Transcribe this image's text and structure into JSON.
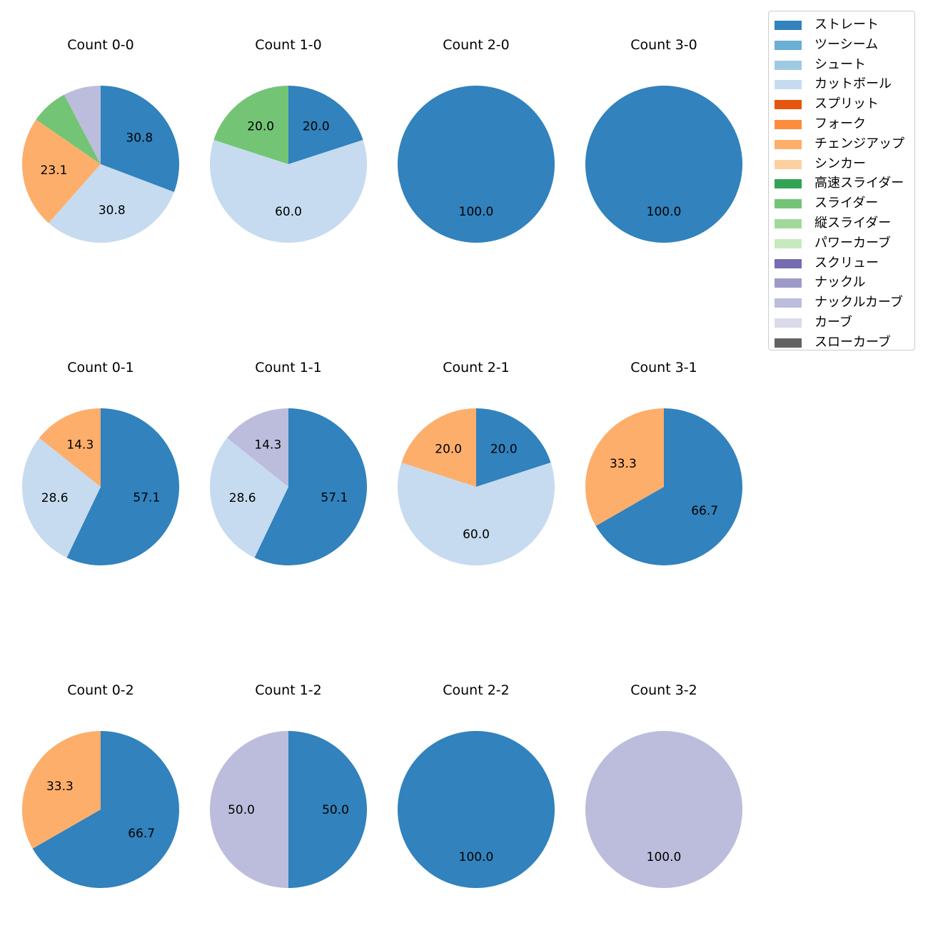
{
  "categories": [
    "ストレート",
    "ツーシーム",
    "シュート",
    "カットボール",
    "スプリット",
    "フォーク",
    "チェンジアップ",
    "シンカー",
    "高速スライダー",
    "スライダー",
    "縦スライダー",
    "パワーカーブ",
    "スクリュー",
    "ナックル",
    "ナックルカーブ",
    "カーブ",
    "スローカーブ"
  ],
  "colors": {
    "ストレート": "#3182bd",
    "ツーシーム": "#6baed6",
    "シュート": "#9ecae1",
    "カットボール": "#c6dbef",
    "スプリット": "#e6550d",
    "フォーク": "#fd8d3c",
    "チェンジアップ": "#fdae6b",
    "シンカー": "#fdd0a2",
    "高速スライダー": "#31a354",
    "スライダー": "#74c476",
    "縦スライダー": "#a1d99b",
    "パワーカーブ": "#c7e9c0",
    "スクリュー": "#756bb1",
    "ナックル": "#9e9ac8",
    "ナックルカーブ": "#bcbddc",
    "カーブ": "#dadaeb",
    "スローカーブ": "#636363"
  },
  "chart_data": [
    {
      "type": "pie",
      "title": "Count 0-0",
      "slices": [
        {
          "label": "ストレート",
          "value": 30.8
        },
        {
          "label": "カットボール",
          "value": 30.8
        },
        {
          "label": "チェンジアップ",
          "value": 23.1
        },
        {
          "label": "スライダー",
          "value": 7.7
        },
        {
          "label": "ナックルカーブ",
          "value": 7.7
        }
      ],
      "labels": [
        "30.8",
        "30.8",
        "23.1",
        "",
        ""
      ]
    },
    {
      "type": "pie",
      "title": "Count 1-0",
      "slices": [
        {
          "label": "ストレート",
          "value": 20.0
        },
        {
          "label": "カットボール",
          "value": 60.0
        },
        {
          "label": "スライダー",
          "value": 20.0
        }
      ],
      "labels": [
        "20.0",
        "60.0",
        "20.0"
      ]
    },
    {
      "type": "pie",
      "title": "Count 2-0",
      "slices": [
        {
          "label": "ストレート",
          "value": 100.0
        }
      ],
      "labels": [
        "100.0"
      ]
    },
    {
      "type": "pie",
      "title": "Count 3-0",
      "slices": [
        {
          "label": "ストレート",
          "value": 100.0
        }
      ],
      "labels": [
        "100.0"
      ]
    },
    {
      "type": "pie",
      "title": "Count 0-1",
      "slices": [
        {
          "label": "ストレート",
          "value": 57.1
        },
        {
          "label": "カットボール",
          "value": 28.6
        },
        {
          "label": "チェンジアップ",
          "value": 14.3
        }
      ],
      "labels": [
        "57.1",
        "28.6",
        "14.3"
      ]
    },
    {
      "type": "pie",
      "title": "Count 1-1",
      "slices": [
        {
          "label": "ストレート",
          "value": 57.1
        },
        {
          "label": "カットボール",
          "value": 28.6
        },
        {
          "label": "ナックルカーブ",
          "value": 14.3
        }
      ],
      "labels": [
        "57.1",
        "28.6",
        "14.3"
      ]
    },
    {
      "type": "pie",
      "title": "Count 2-1",
      "slices": [
        {
          "label": "ストレート",
          "value": 20.0
        },
        {
          "label": "カットボール",
          "value": 60.0
        },
        {
          "label": "チェンジアップ",
          "value": 20.0
        }
      ],
      "labels": [
        "20.0",
        "60.0",
        "20.0"
      ]
    },
    {
      "type": "pie",
      "title": "Count 3-1",
      "slices": [
        {
          "label": "ストレート",
          "value": 66.7
        },
        {
          "label": "チェンジアップ",
          "value": 33.3
        }
      ],
      "labels": [
        "66.7",
        "33.3"
      ]
    },
    {
      "type": "pie",
      "title": "Count 0-2",
      "slices": [
        {
          "label": "ストレート",
          "value": 66.7
        },
        {
          "label": "チェンジアップ",
          "value": 33.3
        }
      ],
      "labels": [
        "66.7",
        "33.3"
      ]
    },
    {
      "type": "pie",
      "title": "Count 1-2",
      "slices": [
        {
          "label": "ストレート",
          "value": 50.0
        },
        {
          "label": "ナックルカーブ",
          "value": 50.0
        }
      ],
      "labels": [
        "50.0",
        "50.0"
      ]
    },
    {
      "type": "pie",
      "title": "Count 2-2",
      "slices": [
        {
          "label": "ストレート",
          "value": 100.0
        }
      ],
      "labels": [
        "100.0"
      ]
    },
    {
      "type": "pie",
      "title": "Count 3-2",
      "slices": [
        {
          "label": "ナックルカーブ",
          "value": 100.0
        }
      ],
      "labels": [
        "100.0"
      ]
    }
  ]
}
